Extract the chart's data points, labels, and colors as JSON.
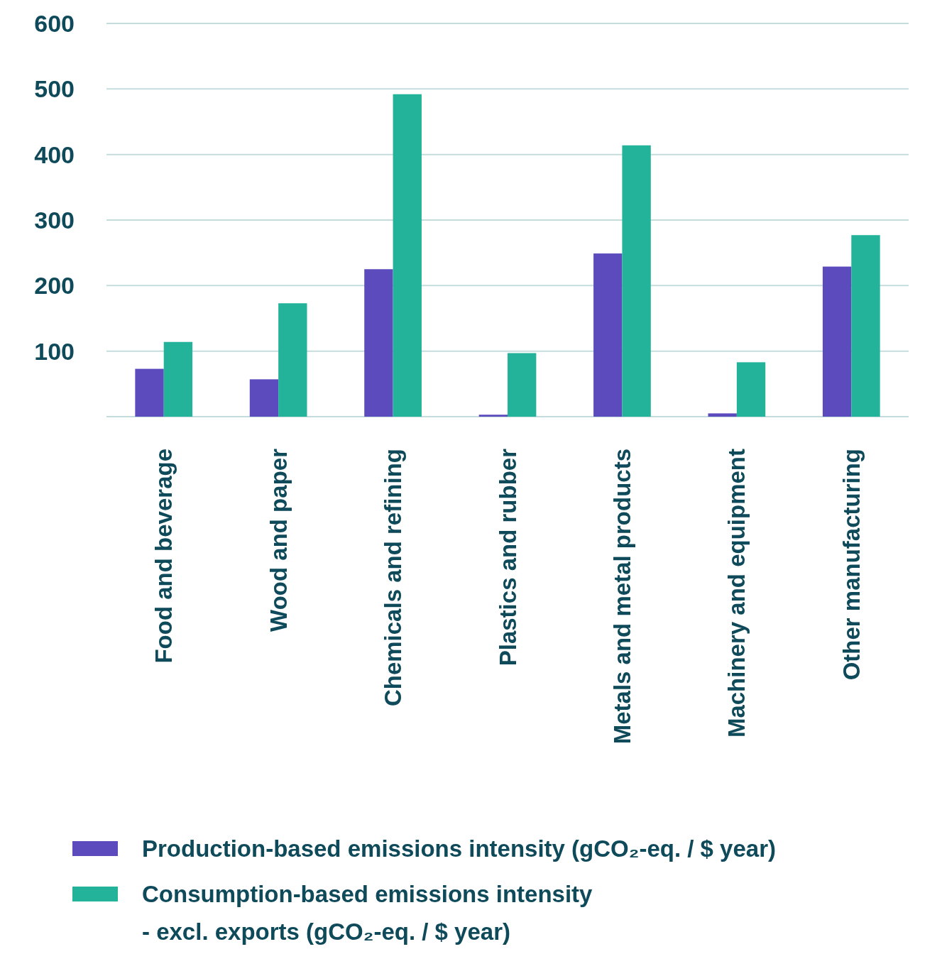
{
  "chart_data": {
    "type": "bar",
    "categories": [
      "Food and beverage",
      "Wood and paper",
      "Chemicals and refining",
      "Plastics and rubber",
      "Metals and metal products",
      "Machinery and equipment",
      "Other manufacturing"
    ],
    "series": [
      {
        "name": "Production-based emissions intensity (gCO₂-eq. / $ year)",
        "color": "#5b4bbd",
        "values": [
          73,
          57,
          225,
          3,
          249,
          5,
          229
        ]
      },
      {
        "name": "Consumption-based emissions intensity - excl. exports  (gCO₂-eq. / $ year)",
        "color": "#22b39a",
        "values": [
          114,
          173,
          492,
          97,
          414,
          83,
          277
        ]
      }
    ],
    "ylim": [
      0,
      600
    ],
    "yticks": [
      {
        "value": 0,
        "label": null
      },
      100,
      200,
      300,
      400,
      500,
      600
    ],
    "grid": "y",
    "legend": "bottom"
  }
}
